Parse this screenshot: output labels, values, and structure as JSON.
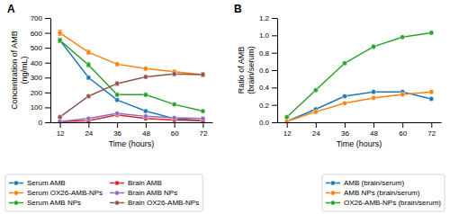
{
  "chart_data": [
    {
      "type": "line",
      "title": "A",
      "xlabel": "Time (hours)",
      "ylabel": "Concentration of AMB\n(ng/mL)",
      "x": [
        12,
        24,
        36,
        48,
        60,
        72
      ],
      "xlim": [
        8,
        76
      ],
      "xticks": [
        12,
        24,
        36,
        48,
        60,
        72
      ],
      "ylim": [
        0,
        700
      ],
      "yticks": [
        0,
        100,
        200,
        300,
        400,
        500,
        600,
        700
      ],
      "marker": "circle",
      "legend": "lower left",
      "series": [
        {
          "name": "Serum AMB",
          "values": [
            550,
            300,
            150,
            75,
            25,
            10
          ],
          "errors": [
            15,
            12,
            10,
            8,
            5,
            3
          ]
        },
        {
          "name": "Serum OX26-AMB-NPs",
          "values": [
            600,
            470,
            390,
            360,
            340,
            320
          ],
          "errors": [
            18,
            15,
            12,
            12,
            10,
            10
          ]
        },
        {
          "name": "Serum AMB NPs",
          "values": [
            550,
            385,
            185,
            185,
            120,
            75
          ],
          "errors": [
            15,
            15,
            10,
            12,
            8,
            6
          ]
        },
        {
          "name": "Brain AMB",
          "values": [
            5,
            10,
            50,
            25,
            15,
            10
          ],
          "errors": [
            1,
            2,
            5,
            3,
            2,
            2
          ]
        },
        {
          "name": "Brain AMB NPs",
          "values": [
            5,
            25,
            60,
            40,
            30,
            25
          ],
          "errors": [
            1,
            3,
            5,
            4,
            3,
            3
          ]
        },
        {
          "name": "Brain OX26-AMB-NPs",
          "values": [
            35,
            175,
            260,
            305,
            325,
            320
          ],
          "errors": [
            4,
            10,
            12,
            12,
            12,
            12
          ]
        }
      ]
    },
    {
      "type": "line",
      "title": "B",
      "xlabel": "Time (hours)",
      "ylabel": "Ratio of AMB\n(brain/serum)",
      "x": [
        12,
        24,
        36,
        48,
        60,
        72
      ],
      "xlim": [
        8,
        76
      ],
      "xticks": [
        12,
        24,
        36,
        48,
        60,
        72
      ],
      "ylim": [
        0,
        1.2
      ],
      "yticks": [
        {
          "value": 0,
          "label": "0.0"
        },
        0.2,
        0.4,
        0.6,
        0.8,
        {
          "value": 1,
          "label": "1.0"
        },
        1.2
      ],
      "marker": "circle",
      "legend": "lower right",
      "series": [
        {
          "name": "AMB (brain/serum)",
          "values": [
            0.01,
            0.15,
            0.3,
            0.35,
            0.35,
            0.27
          ],
          "errors": [
            0.003,
            0.012,
            0.015,
            0.015,
            0.015,
            0.012
          ]
        },
        {
          "name": "AMB NPs (brain/serum)",
          "values": [
            0.01,
            0.12,
            0.22,
            0.28,
            0.32,
            0.35
          ],
          "errors": [
            0.003,
            0.01,
            0.012,
            0.012,
            0.012,
            0.012
          ]
        },
        {
          "name": "OX26-AMB-NPs (brain/serum)",
          "values": [
            0.06,
            0.37,
            0.68,
            0.87,
            0.98,
            1.03
          ],
          "errors": [
            0.006,
            0.015,
            0.018,
            0.018,
            0.015,
            0.015
          ]
        }
      ]
    }
  ]
}
